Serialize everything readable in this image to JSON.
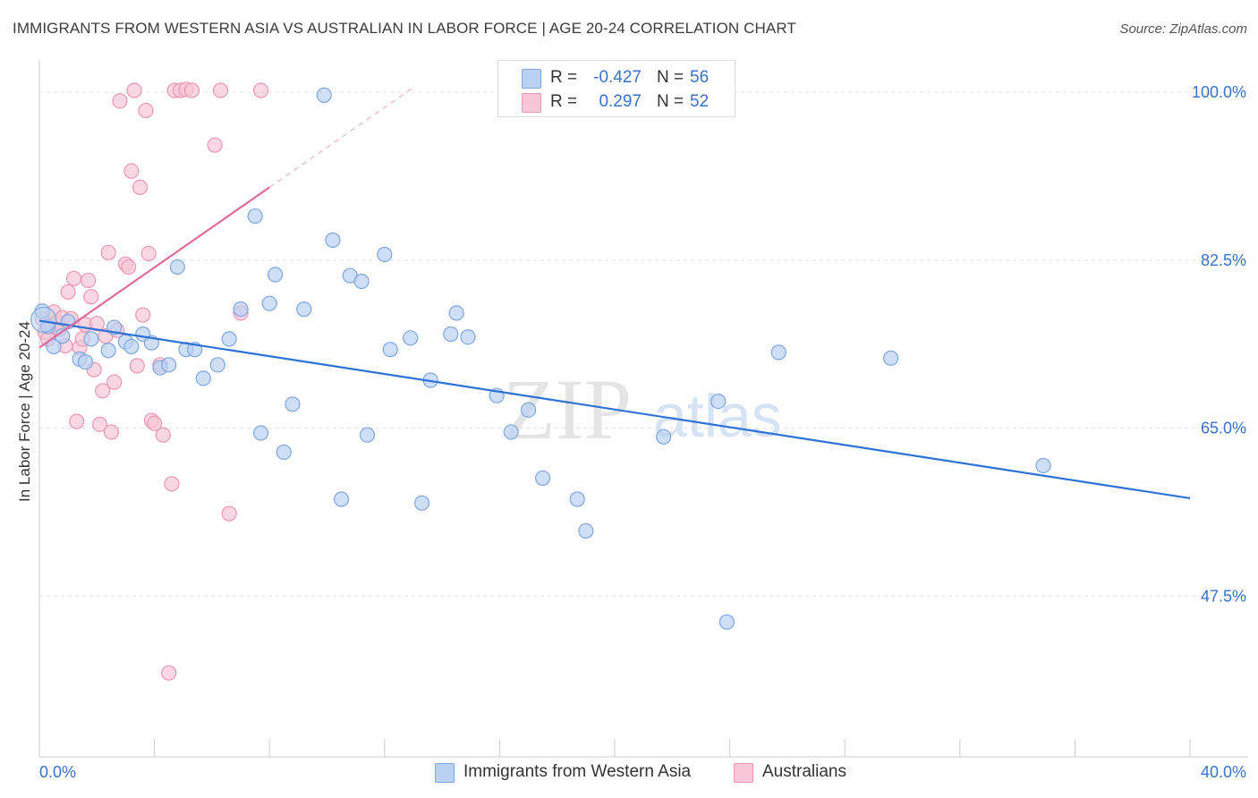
{
  "header": {
    "title": "IMMIGRANTS FROM WESTERN ASIA VS AUSTRALIAN IN LABOR FORCE | AGE 20-24 CORRELATION CHART",
    "source": "Source: ZipAtlas.com"
  },
  "legend_top": {
    "rows": [
      {
        "r_label": "R =",
        "r_value": "-0.427",
        "n_label": "N =",
        "n_value": "56"
      },
      {
        "r_label": "R =",
        "r_value": "0.297",
        "n_label": "N =",
        "n_value": "52"
      }
    ]
  },
  "legend_bottom": {
    "series": [
      "Immigrants from Western Asia",
      "Australians"
    ]
  },
  "watermark": {
    "zip": "ZIP",
    "atlas": "atlas"
  },
  "colors": {
    "blue_fill": "#b9d2f3",
    "blue_stroke": "#7ea6e0",
    "blue_line": "#2f72d6",
    "pink_fill": "#f8c6d6",
    "pink_stroke": "#eb96b4",
    "pink_line": "#e06b9a",
    "tick_label": "#3a72c9",
    "grid": "#dde3ea"
  },
  "chart_data": {
    "type": "scatter",
    "title": "IMMIGRANTS FROM WESTERN ASIA VS AUSTRALIAN IN LABOR FORCE | AGE 20-24 CORRELATION CHART",
    "xlabel": "",
    "ylabel": "In Labor Force | Age 20-24",
    "xlim": [
      0,
      40
    ],
    "ylim": [
      31.5,
      103
    ],
    "x_tick_labels": [
      {
        "value": 0,
        "label": "0.0%"
      },
      {
        "value": 40,
        "label": "40.0%"
      }
    ],
    "y_tick_labels": [
      {
        "value": 100,
        "label": "100.0%"
      },
      {
        "value": 82.5,
        "label": "82.5%"
      },
      {
        "value": 65,
        "label": "65.0%"
      },
      {
        "value": 47.5,
        "label": "47.5%"
      }
    ],
    "grid": "horizontal dashed",
    "legend_position": "top-center and bottom",
    "series": [
      {
        "name": "Immigrants from Western Asia",
        "r": -0.427,
        "n": 56,
        "trend": {
          "x": [
            0,
            40
          ],
          "y": [
            76.2,
            57.7
          ]
        },
        "points": [
          [
            0.1,
            77.2
          ],
          [
            0.3,
            75.6
          ],
          [
            0.5,
            73.5
          ],
          [
            0.8,
            74.6
          ],
          [
            1.0,
            76.1
          ],
          [
            1.4,
            72.2
          ],
          [
            1.6,
            71.9
          ],
          [
            1.8,
            74.3
          ],
          [
            2.4,
            73.1
          ],
          [
            2.6,
            75.5
          ],
          [
            3.0,
            74.0
          ],
          [
            3.2,
            73.5
          ],
          [
            3.6,
            74.8
          ],
          [
            3.9,
            73.9
          ],
          [
            4.2,
            71.3
          ],
          [
            4.5,
            71.6
          ],
          [
            4.8,
            81.8
          ],
          [
            5.1,
            73.2
          ],
          [
            5.4,
            73.2
          ],
          [
            5.7,
            70.2
          ],
          [
            6.2,
            71.6
          ],
          [
            6.6,
            74.3
          ],
          [
            7.0,
            77.4
          ],
          [
            7.5,
            87.1
          ],
          [
            7.7,
            64.5
          ],
          [
            8.0,
            78.0
          ],
          [
            8.2,
            81.0
          ],
          [
            8.5,
            62.5
          ],
          [
            8.8,
            67.5
          ],
          [
            9.2,
            77.4
          ],
          [
            9.9,
            99.7
          ],
          [
            10.2,
            84.6
          ],
          [
            10.5,
            57.6
          ],
          [
            10.8,
            80.9
          ],
          [
            11.2,
            80.3
          ],
          [
            11.4,
            64.3
          ],
          [
            12.0,
            83.1
          ],
          [
            12.2,
            73.2
          ],
          [
            12.9,
            74.4
          ],
          [
            13.3,
            57.2
          ],
          [
            13.6,
            70.0
          ],
          [
            14.3,
            74.8
          ],
          [
            14.5,
            77.0
          ],
          [
            14.9,
            74.5
          ],
          [
            15.9,
            68.4
          ],
          [
            16.4,
            64.6
          ],
          [
            17.0,
            66.9
          ],
          [
            17.5,
            59.8
          ],
          [
            18.7,
            57.6
          ],
          [
            19.0,
            54.3
          ],
          [
            21.7,
            64.1
          ],
          [
            23.6,
            67.8
          ],
          [
            23.9,
            44.8
          ],
          [
            25.7,
            72.9
          ],
          [
            29.6,
            72.3
          ],
          [
            34.9,
            61.1
          ]
        ]
      },
      {
        "name": "Australians",
        "r": 0.297,
        "n": 52,
        "trend": {
          "x": [
            0,
            8
          ],
          "y": [
            73.4,
            90.1
          ]
        },
        "trend_extension": {
          "x": [
            8,
            13
          ],
          "y": [
            90.1,
            100.5
          ]
        },
        "points": [
          [
            0.1,
            76.4
          ],
          [
            0.2,
            75.0
          ],
          [
            0.3,
            74.3
          ],
          [
            0.4,
            75.7
          ],
          [
            0.5,
            77.1
          ],
          [
            0.6,
            76.0
          ],
          [
            0.7,
            75.3
          ],
          [
            0.8,
            76.5
          ],
          [
            0.9,
            73.6
          ],
          [
            1.0,
            79.2
          ],
          [
            1.1,
            76.4
          ],
          [
            1.2,
            80.6
          ],
          [
            1.3,
            65.7
          ],
          [
            1.4,
            73.4
          ],
          [
            1.5,
            74.3
          ],
          [
            1.6,
            75.8
          ],
          [
            1.7,
            80.4
          ],
          [
            1.8,
            78.7
          ],
          [
            1.9,
            71.1
          ],
          [
            2.0,
            75.9
          ],
          [
            2.1,
            65.4
          ],
          [
            2.2,
            68.9
          ],
          [
            2.3,
            74.6
          ],
          [
            2.4,
            83.3
          ],
          [
            2.5,
            64.6
          ],
          [
            2.6,
            69.8
          ],
          [
            2.7,
            75.2
          ],
          [
            2.8,
            99.1
          ],
          [
            3.0,
            82.1
          ],
          [
            3.1,
            81.8
          ],
          [
            3.2,
            91.8
          ],
          [
            3.3,
            100.2
          ],
          [
            3.4,
            71.5
          ],
          [
            3.5,
            90.1
          ],
          [
            3.6,
            76.8
          ],
          [
            3.7,
            98.1
          ],
          [
            3.8,
            83.2
          ],
          [
            3.9,
            65.8
          ],
          [
            4.0,
            65.5
          ],
          [
            4.2,
            71.6
          ],
          [
            4.3,
            64.3
          ],
          [
            4.5,
            39.5
          ],
          [
            4.6,
            59.2
          ],
          [
            4.7,
            100.2
          ],
          [
            4.9,
            100.2
          ],
          [
            5.1,
            100.3
          ],
          [
            5.3,
            100.2
          ],
          [
            6.1,
            94.5
          ],
          [
            6.3,
            100.2
          ],
          [
            6.6,
            56.1
          ],
          [
            7.0,
            77.0
          ],
          [
            7.7,
            100.2
          ]
        ]
      }
    ]
  }
}
